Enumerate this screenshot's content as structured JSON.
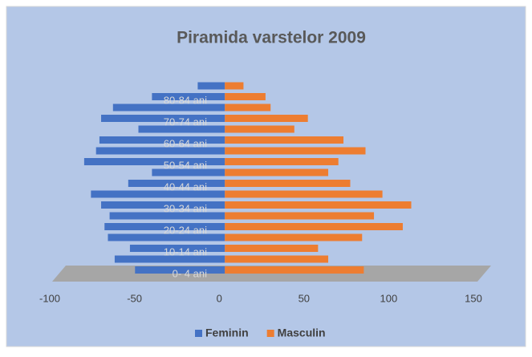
{
  "chart_data": {
    "type": "bar",
    "orientation": "horizontal",
    "title": "Piramida varstelor 2009",
    "categories": [
      "0- 4 ani",
      null,
      "10-14 ani",
      null,
      "20-24 ani",
      null,
      "30-34 ani",
      null,
      "40-44 ani",
      null,
      "50-54 ani",
      null,
      "60-64 ani",
      null,
      "70-74 ani",
      null,
      "80-84 ani",
      null
    ],
    "series": [
      {
        "name": "Feminin",
        "color": "#4472c4",
        "values": [
          -53,
          -65,
          -56,
          -69,
          -71,
          -68,
          -73,
          -79,
          -57,
          -43,
          -83,
          -76,
          -74,
          -51,
          -73,
          -66,
          -43,
          -16
        ]
      },
      {
        "name": "Masculin",
        "color": "#ed7d31",
        "values": [
          82,
          61,
          55,
          81,
          105,
          88,
          110,
          93,
          74,
          61,
          67,
          83,
          70,
          41,
          49,
          27,
          24,
          11
        ]
      }
    ],
    "xlim": [
      -100,
      150
    ],
    "xticks": [
      -100,
      -50,
      0,
      50,
      100,
      150
    ],
    "legend": "bottom"
  }
}
